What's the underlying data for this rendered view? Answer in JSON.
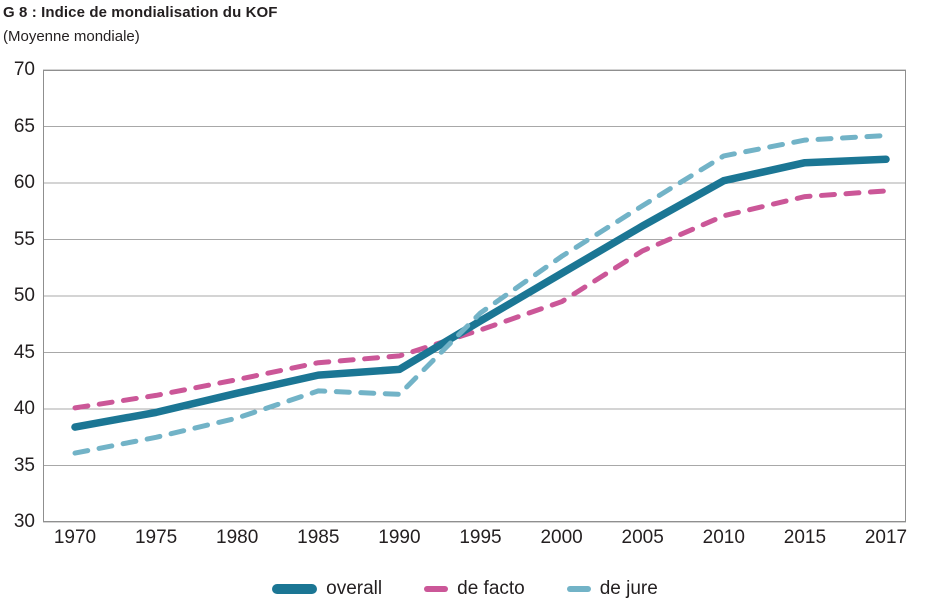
{
  "chart_data": {
    "type": "line",
    "title": "G 8 : Indice de mondialisation du KOF",
    "subtitle": "(Moyenne mondiale)",
    "xlabel": "",
    "ylabel": "",
    "ylim": [
      30,
      70
    ],
    "y_ticks": [
      70,
      65,
      60,
      55,
      50,
      45,
      40,
      35,
      30
    ],
    "x_ticks": [
      "1970",
      "1975",
      "1980",
      "1985",
      "1990",
      "1995",
      "2000",
      "2005",
      "2010",
      "2015",
      "2017"
    ],
    "x_tick_years": [
      1970,
      1975,
      1980,
      1985,
      1990,
      1995,
      2000,
      2005,
      2010,
      2015,
      2017
    ],
    "grid": "horizontal",
    "legend_position": "bottom-center",
    "colors": {
      "grid": "#a8a8a8",
      "border": "#8f8f8f",
      "text": "#231f20",
      "overall": "#1b7694",
      "de_facto": "#cb5798",
      "de_jure": "#72b3c7"
    },
    "series": [
      {
        "name": "overall",
        "color": "#1b7694",
        "style": "solid-thick",
        "points": [
          [
            1970,
            38.4
          ],
          [
            1975,
            39.7
          ],
          [
            1980,
            41.4
          ],
          [
            1985,
            43.0
          ],
          [
            1990,
            43.5
          ],
          [
            1995,
            47.8
          ],
          [
            2000,
            52.0
          ],
          [
            2005,
            56.2
          ],
          [
            2010,
            60.2
          ],
          [
            2015,
            61.8
          ],
          [
            2017,
            62.1
          ]
        ]
      },
      {
        "name": "de facto",
        "color": "#cb5798",
        "style": "dashed",
        "points": [
          [
            1970,
            40.1
          ],
          [
            1975,
            41.2
          ],
          [
            1980,
            42.6
          ],
          [
            1985,
            44.1
          ],
          [
            1990,
            44.7
          ],
          [
            1995,
            47.0
          ],
          [
            2000,
            49.5
          ],
          [
            2005,
            54.0
          ],
          [
            2010,
            57.1
          ],
          [
            2015,
            58.8
          ],
          [
            2017,
            59.3
          ]
        ]
      },
      {
        "name": "de jure",
        "color": "#72b3c7",
        "style": "dashed",
        "points": [
          [
            1970,
            36.1
          ],
          [
            1975,
            37.5
          ],
          [
            1980,
            39.2
          ],
          [
            1985,
            41.6
          ],
          [
            1990,
            41.3
          ],
          [
            1995,
            48.5
          ],
          [
            2000,
            53.5
          ],
          [
            2005,
            58.0
          ],
          [
            2010,
            62.4
          ],
          [
            2015,
            63.8
          ],
          [
            2017,
            64.2
          ]
        ]
      }
    ]
  }
}
